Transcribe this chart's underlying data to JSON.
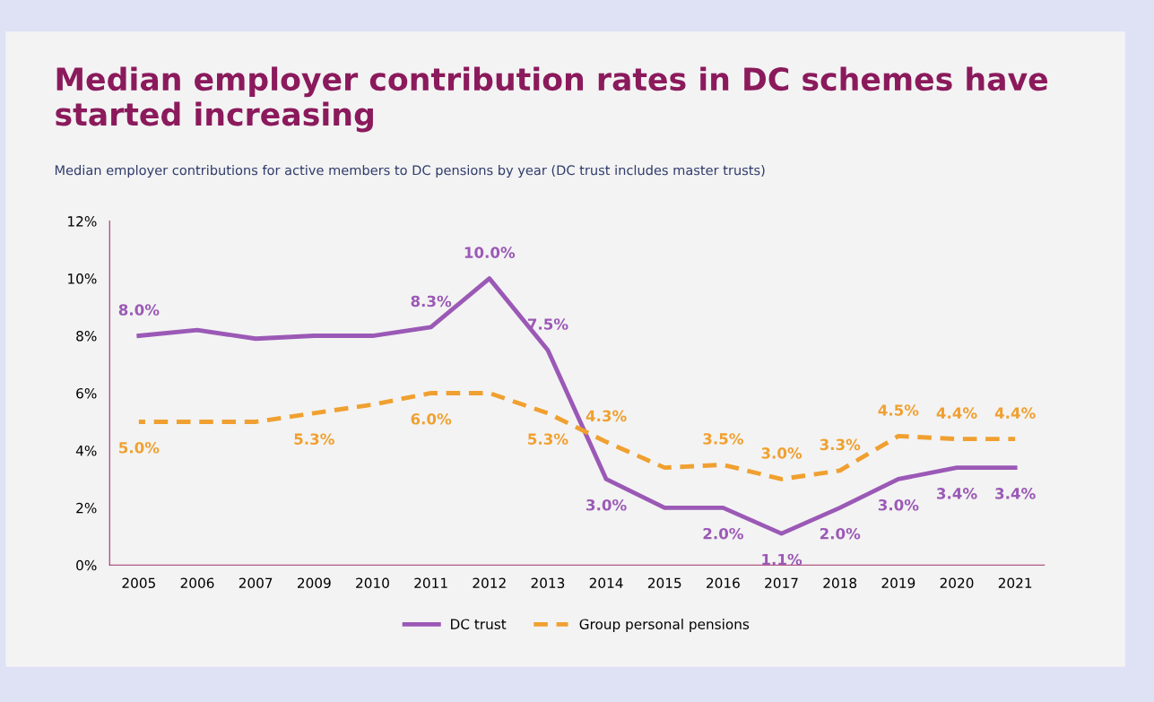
{
  "chart_data": {
    "type": "line",
    "title": "Median employer contribution rates in DC schemes have started increasing",
    "subtitle": "Median employer contributions for active members to DC pensions by year (DC trust includes master trusts)",
    "categories": [
      "2005",
      "2006",
      "2007",
      "2009",
      "2010",
      "2011",
      "2012",
      "2013",
      "2014",
      "2015",
      "2016",
      "2017",
      "2018",
      "2019",
      "2020",
      "2021"
    ],
    "series": [
      {
        "name": "DC trust",
        "color": "#9b59b6",
        "line_style": "solid",
        "values": [
          8.0,
          8.2,
          7.9,
          8.0,
          8.0,
          8.3,
          10.0,
          7.5,
          3.0,
          2.0,
          2.0,
          1.1,
          2.0,
          3.0,
          3.4,
          3.4
        ],
        "value_labels": [
          "8.0%",
          null,
          null,
          null,
          null,
          "8.3%",
          "10.0%",
          "7.5%",
          "3.0%",
          null,
          "2.0%",
          "1.1%",
          "2.0%",
          "3.0%",
          "3.4%",
          "3.4%"
        ]
      },
      {
        "name": "Group personal pensions",
        "color": "#f0a030",
        "line_style": "dashed",
        "values": [
          5.0,
          5.0,
          5.0,
          5.3,
          5.6,
          6.0,
          6.0,
          5.3,
          4.3,
          3.4,
          3.5,
          3.0,
          3.3,
          4.5,
          4.4,
          4.4
        ],
        "value_labels": [
          "5.0%",
          null,
          null,
          "5.3%",
          null,
          "6.0%",
          null,
          "5.3%",
          "4.3%",
          null,
          "3.5%",
          "3.0%",
          "3.3%",
          "4.5%",
          "4.4%",
          "4.4%"
        ]
      }
    ],
    "ylim": [
      0,
      12
    ],
    "yticks": [
      {
        "value": 0,
        "label": "0%"
      },
      {
        "value": 2,
        "label": "2%"
      },
      {
        "value": 4,
        "label": "4%"
      },
      {
        "value": 6,
        "label": "6%"
      },
      {
        "value": 8,
        "label": "8%"
      },
      {
        "value": 10,
        "label": "10%"
      },
      {
        "value": 12,
        "label": "12%"
      }
    ],
    "grid": false,
    "legend": "bottom",
    "marker": "none"
  }
}
